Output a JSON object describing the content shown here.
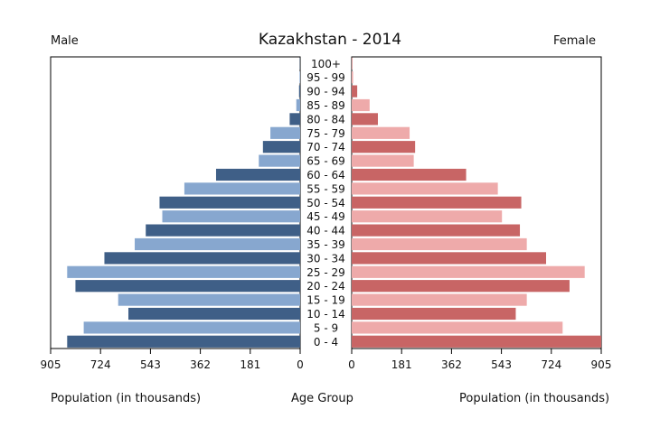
{
  "chart_data": {
    "type": "bar",
    "title": "Kazakhstan - 2014",
    "left_label": "Male",
    "right_label": "Female",
    "xlabel_left": "Population (in thousands)",
    "xlabel_center": "Age Group",
    "xlabel_right": "Population (in thousands)",
    "xlim": [
      0,
      905
    ],
    "xticks": [
      "905",
      "724",
      "543",
      "362",
      "181",
      "0"
    ],
    "xticks_right": [
      "0",
      "181",
      "362",
      "543",
      "724",
      "905"
    ],
    "categories": [
      "0 - 4",
      "5 - 9",
      "10 - 14",
      "15 - 19",
      "20 - 24",
      "25 - 29",
      "30 - 34",
      "35 - 39",
      "40 - 44",
      "45 - 49",
      "50 - 54",
      "55 - 59",
      "60 - 64",
      "65 - 69",
      "70 - 74",
      "75 - 79",
      "80 - 84",
      "85 - 89",
      "90 - 94",
      "95 - 99",
      "100+"
    ],
    "series": [
      {
        "name": "Male",
        "values": [
          845,
          785,
          623,
          660,
          815,
          845,
          710,
          600,
          560,
          500,
          510,
          420,
          305,
          150,
          135,
          108,
          38,
          14,
          4,
          2,
          1
        ]
      },
      {
        "name": "Female",
        "values": [
          905,
          765,
          595,
          635,
          790,
          845,
          705,
          635,
          610,
          545,
          615,
          530,
          415,
          225,
          230,
          210,
          95,
          65,
          20,
          5,
          2
        ]
      }
    ],
    "colors": {
      "male_dark": "#3f5f87",
      "male_light": "#87a7cf",
      "female_dark": "#c86565",
      "female_light": "#eeaaaa"
    }
  }
}
